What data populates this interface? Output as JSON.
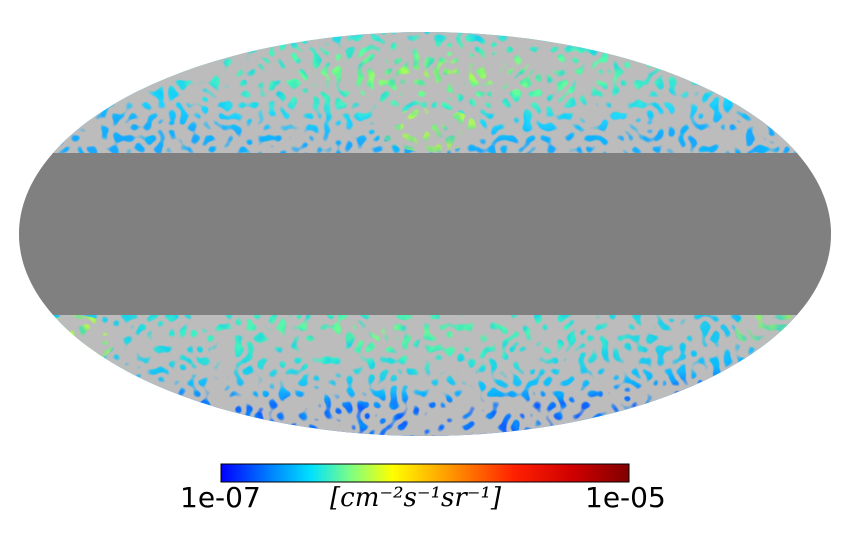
{
  "map": {
    "projection": "mollweide",
    "colormap": "jet",
    "masked_color": "#808080",
    "background": "#ffffff"
  },
  "colorbar": {
    "min_label": "1e-07",
    "max_label": "1e-05",
    "unit_label": "[cm⁻²s⁻¹sr⁻¹]",
    "scale": "log"
  }
}
